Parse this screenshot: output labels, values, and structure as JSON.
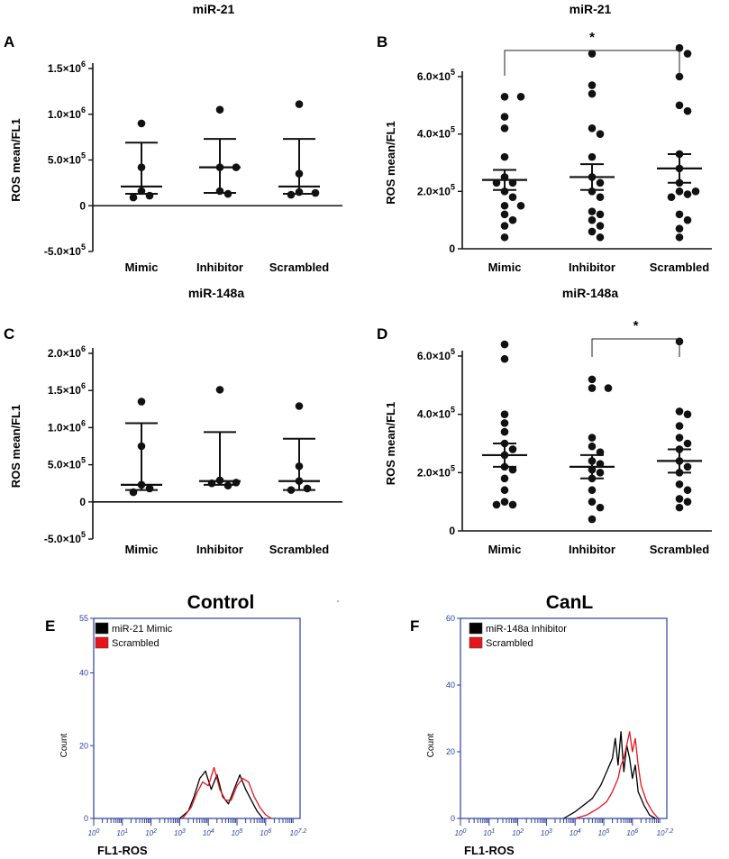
{
  "chart_data": [
    {
      "panel": "A",
      "type": "scatter",
      "title": "miR-21",
      "ylabel": "ROS mean/FL1",
      "categories": [
        "Mimic",
        "Inhibitor",
        "Scrambled"
      ],
      "ylim": [
        -500000,
        1500000
      ],
      "yticks": [
        {
          "v": -500000,
          "m": "-5.0",
          "e": "5"
        },
        {
          "v": 0,
          "m": "0",
          "e": ""
        },
        {
          "v": 500000,
          "m": "5.0",
          "e": "5"
        },
        {
          "v": 1000000,
          "m": "1.0",
          "e": "6"
        },
        {
          "v": 1500000,
          "m": "1.5",
          "e": "6"
        }
      ],
      "summary": "median_range",
      "points": [
        [
          900000,
          420000,
          160000,
          110000,
          90000
        ],
        [
          1050000,
          420000,
          420000,
          160000,
          130000
        ],
        [
          1110000,
          350000,
          150000,
          140000,
          120000
        ]
      ],
      "center": [
        210000,
        420000,
        210000
      ],
      "upper": [
        690000,
        730000,
        730000
      ],
      "lower": [
        130000,
        140000,
        130000
      ],
      "significance": []
    },
    {
      "panel": "B",
      "type": "scatter",
      "title": "miR-21",
      "ylabel": "ROS mean/FL1",
      "categories": [
        "Mimic",
        "Inhibitor",
        "Scrambled"
      ],
      "ylim": [
        0,
        750000
      ],
      "yticks": [
        {
          "v": 0,
          "m": "0",
          "e": ""
        },
        {
          "v": 200000,
          "m": "2.0",
          "e": "5"
        },
        {
          "v": 400000,
          "m": "4.0",
          "e": "5"
        },
        {
          "v": 600000,
          "m": "6.0",
          "e": "5"
        }
      ],
      "summary": "mean_sem",
      "points": [
        [
          530000,
          530000,
          460000,
          420000,
          320000,
          250000,
          230000,
          230000,
          200000,
          180000,
          150000,
          150000,
          120000,
          100000,
          80000,
          40000
        ],
        [
          680000,
          570000,
          540000,
          420000,
          400000,
          320000,
          250000,
          230000,
          200000,
          180000,
          130000,
          120000,
          100000,
          80000,
          60000,
          40000
        ],
        [
          700000,
          680000,
          600000,
          500000,
          480000,
          330000,
          280000,
          230000,
          200000,
          200000,
          190000,
          180000,
          120000,
          100000,
          70000,
          40000
        ]
      ],
      "center": [
        240000,
        250000,
        280000
      ],
      "upper": [
        275000,
        295000,
        330000
      ],
      "lower": [
        205000,
        205000,
        230000
      ],
      "significance": [
        {
          "from": 0,
          "to": 2,
          "label": "*",
          "y": 690000
        }
      ]
    },
    {
      "panel": "C",
      "type": "scatter",
      "title": "miR-148a",
      "ylabel": "ROS mean/FL1",
      "categories": [
        "Mimic",
        "Inhibitor",
        "Scrambled"
      ],
      "ylim": [
        -500000,
        2000000
      ],
      "yticks": [
        {
          "v": -500000,
          "m": "-5.0",
          "e": "5"
        },
        {
          "v": 0,
          "m": "0",
          "e": ""
        },
        {
          "v": 500000,
          "m": "5.0",
          "e": "5"
        },
        {
          "v": 1000000,
          "m": "1.0",
          "e": "6"
        },
        {
          "v": 1500000,
          "m": "1.5",
          "e": "6"
        },
        {
          "v": 2000000,
          "m": "2.0",
          "e": "6"
        }
      ],
      "summary": "median_range",
      "points": [
        [
          1350000,
          750000,
          230000,
          180000,
          130000
        ],
        [
          1510000,
          290000,
          260000,
          250000,
          220000
        ],
        [
          1290000,
          480000,
          280000,
          180000,
          160000
        ]
      ],
      "center": [
        230000,
        280000,
        280000
      ],
      "upper": [
        1060000,
        940000,
        850000
      ],
      "lower": [
        160000,
        230000,
        160000
      ],
      "significance": []
    },
    {
      "panel": "D",
      "type": "scatter",
      "title": "miR-148a",
      "ylabel": "ROS mean/FL1",
      "categories": [
        "Mimic",
        "Inhibitor",
        "Scrambled"
      ],
      "ylim": [
        0,
        700000
      ],
      "yticks": [
        {
          "v": 0,
          "m": "0",
          "e": ""
        },
        {
          "v": 200000,
          "m": "2.0",
          "e": "5"
        },
        {
          "v": 400000,
          "m": "4.0",
          "e": "5"
        },
        {
          "v": 600000,
          "m": "6.0",
          "e": "5"
        }
      ],
      "summary": "mean_sem",
      "points": [
        [
          640000,
          590000,
          400000,
          370000,
          340000,
          300000,
          280000,
          260000,
          220000,
          210000,
          180000,
          140000,
          100000,
          90000,
          90000
        ],
        [
          520000,
          490000,
          490000,
          320000,
          290000,
          270000,
          240000,
          230000,
          210000,
          200000,
          180000,
          140000,
          100000,
          80000,
          40000
        ],
        [
          650000,
          410000,
          400000,
          360000,
          320000,
          300000,
          280000,
          240000,
          220000,
          200000,
          160000,
          140000,
          110000,
          100000,
          80000
        ]
      ],
      "center": [
        260000,
        220000,
        240000
      ],
      "upper": [
        300000,
        260000,
        280000
      ],
      "lower": [
        220000,
        180000,
        200000
      ],
      "significance": [
        {
          "from": 1,
          "to": 2,
          "label": "*",
          "y": 640000
        }
      ]
    },
    {
      "panel": "E",
      "type": "line",
      "title": "Control",
      "xlabel": "FL1-ROS",
      "ylabel": "Count",
      "xscale": "log",
      "xlim": [
        0,
        7.2
      ],
      "ylim": [
        0,
        55
      ],
      "yticks": [
        0,
        20,
        40,
        55
      ],
      "xticks": [
        {
          "b": "10",
          "e": "0"
        },
        {
          "b": "10",
          "e": "1"
        },
        {
          "b": "10",
          "e": "2"
        },
        {
          "b": "10",
          "e": "3"
        },
        {
          "b": "10",
          "e": "4"
        },
        {
          "b": "10",
          "e": "5"
        },
        {
          "b": "10",
          "e": "6"
        },
        {
          "b": "10",
          "e": "7.2"
        }
      ],
      "series": [
        {
          "name": "miR-21 Mimic",
          "color": "#000000",
          "x": [
            3.0,
            3.3,
            3.5,
            3.7,
            3.9,
            4.1,
            4.3,
            4.5,
            4.7,
            4.9,
            5.1,
            5.3,
            5.5,
            5.7,
            5.9
          ],
          "y": [
            0,
            2,
            6,
            11,
            13,
            8,
            12,
            6,
            4,
            8,
            12,
            8,
            5,
            2,
            0
          ]
        },
        {
          "name": "Scrambled",
          "color": "#e8141c",
          "x": [
            3.1,
            3.4,
            3.6,
            3.8,
            4.0,
            4.2,
            4.4,
            4.6,
            4.8,
            5.0,
            5.2,
            5.4,
            5.6,
            5.8,
            6.0,
            6.2
          ],
          "y": [
            0,
            3,
            7,
            10,
            9,
            14,
            8,
            5,
            5,
            9,
            11,
            10,
            6,
            3,
            1,
            0
          ]
        }
      ]
    },
    {
      "panel": "F",
      "type": "line",
      "title": "CanL",
      "xlabel": "FL1-ROS",
      "ylabel": "Count",
      "xscale": "log",
      "xlim": [
        0,
        7.2
      ],
      "ylim": [
        0,
        60
      ],
      "yticks": [
        0,
        20,
        40,
        60
      ],
      "xticks": [
        {
          "b": "10",
          "e": "0"
        },
        {
          "b": "10",
          "e": "1"
        },
        {
          "b": "10",
          "e": "2"
        },
        {
          "b": "10",
          "e": "3"
        },
        {
          "b": "10",
          "e": "4"
        },
        {
          "b": "10",
          "e": "5"
        },
        {
          "b": "10",
          "e": "6"
        },
        {
          "b": "10",
          "e": "7.2"
        }
      ],
      "series": [
        {
          "name": "miR-148a Inhibitor",
          "color": "#000000",
          "x": [
            3.6,
            4.0,
            4.3,
            4.6,
            4.9,
            5.1,
            5.3,
            5.4,
            5.5,
            5.6,
            5.7,
            5.8,
            5.9,
            6.0,
            6.1,
            6.2,
            6.4,
            6.6,
            6.8
          ],
          "y": [
            0,
            2,
            4,
            6,
            10,
            14,
            18,
            24,
            16,
            26,
            14,
            22,
            18,
            12,
            16,
            8,
            4,
            1,
            0
          ]
        },
        {
          "name": "Scrambled",
          "color": "#e8141c",
          "x": [
            4.0,
            4.4,
            4.8,
            5.1,
            5.3,
            5.5,
            5.6,
            5.7,
            5.8,
            5.9,
            6.0,
            6.1,
            6.2,
            6.3,
            6.5,
            6.7,
            6.9
          ],
          "y": [
            0,
            1,
            3,
            5,
            8,
            12,
            16,
            18,
            22,
            26,
            20,
            24,
            16,
            10,
            5,
            2,
            0
          ]
        }
      ]
    }
  ],
  "panel_letters": [
    "A",
    "B",
    "C",
    "D",
    "E",
    "F"
  ],
  "times_symbol": "×"
}
